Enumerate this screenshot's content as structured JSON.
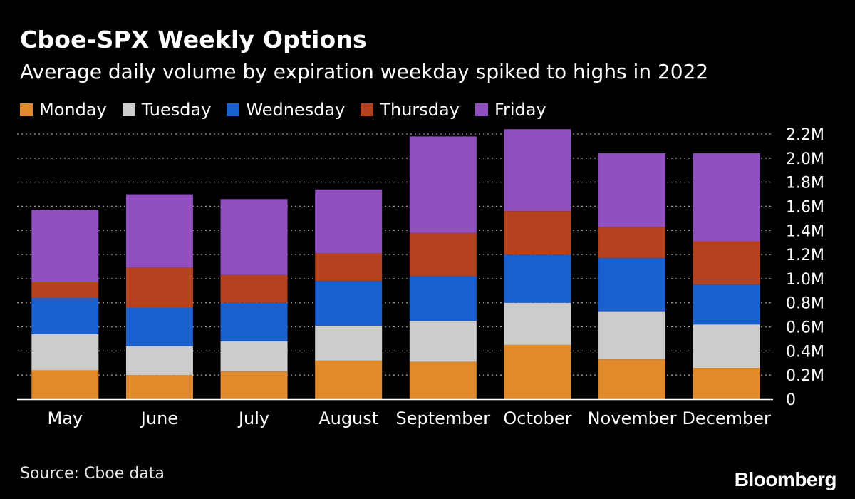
{
  "title": "Cboe-SPX Weekly Options",
  "subtitle": "Average daily volume by expiration weekday spiked to highs in 2022",
  "source": "Source: Cboe data",
  "brand": "Bloomberg",
  "legend_position": "top-left",
  "chart_data": {
    "type": "bar",
    "stacked": true,
    "categories": [
      "May",
      "June",
      "July",
      "August",
      "September",
      "October",
      "November",
      "December"
    ],
    "series": [
      {
        "name": "Monday",
        "color": "#e08a2c",
        "values": [
          0.24,
          0.2,
          0.23,
          0.32,
          0.31,
          0.45,
          0.33,
          0.26
        ]
      },
      {
        "name": "Tuesday",
        "color": "#cccccc",
        "values": [
          0.3,
          0.24,
          0.25,
          0.29,
          0.34,
          0.35,
          0.4,
          0.36
        ]
      },
      {
        "name": "Wednesday",
        "color": "#1a5fce",
        "values": [
          0.3,
          0.32,
          0.32,
          0.37,
          0.37,
          0.4,
          0.44,
          0.33
        ]
      },
      {
        "name": "Thursday",
        "color": "#b5421f",
        "values": [
          0.13,
          0.33,
          0.23,
          0.23,
          0.36,
          0.36,
          0.26,
          0.36
        ]
      },
      {
        "name": "Friday",
        "color": "#9050c0",
        "values": [
          0.6,
          0.61,
          0.63,
          0.53,
          0.8,
          0.68,
          0.61,
          0.73
        ]
      }
    ],
    "ylim": [
      0,
      2.2
    ],
    "yticks": [
      0,
      0.2,
      0.4,
      0.6,
      0.8,
      1.0,
      1.2,
      1.4,
      1.6,
      1.8,
      2.0,
      2.2
    ],
    "ytick_labels": [
      "0",
      "0.2M",
      "0.4M",
      "0.6M",
      "0.8M",
      "1.0M",
      "1.2M",
      "1.4M",
      "1.6M",
      "1.8M",
      "2.0M",
      "2.2M"
    ],
    "yaxis_side": "right",
    "grid": "horizontal dotted",
    "xlabel": "",
    "ylabel": ""
  }
}
